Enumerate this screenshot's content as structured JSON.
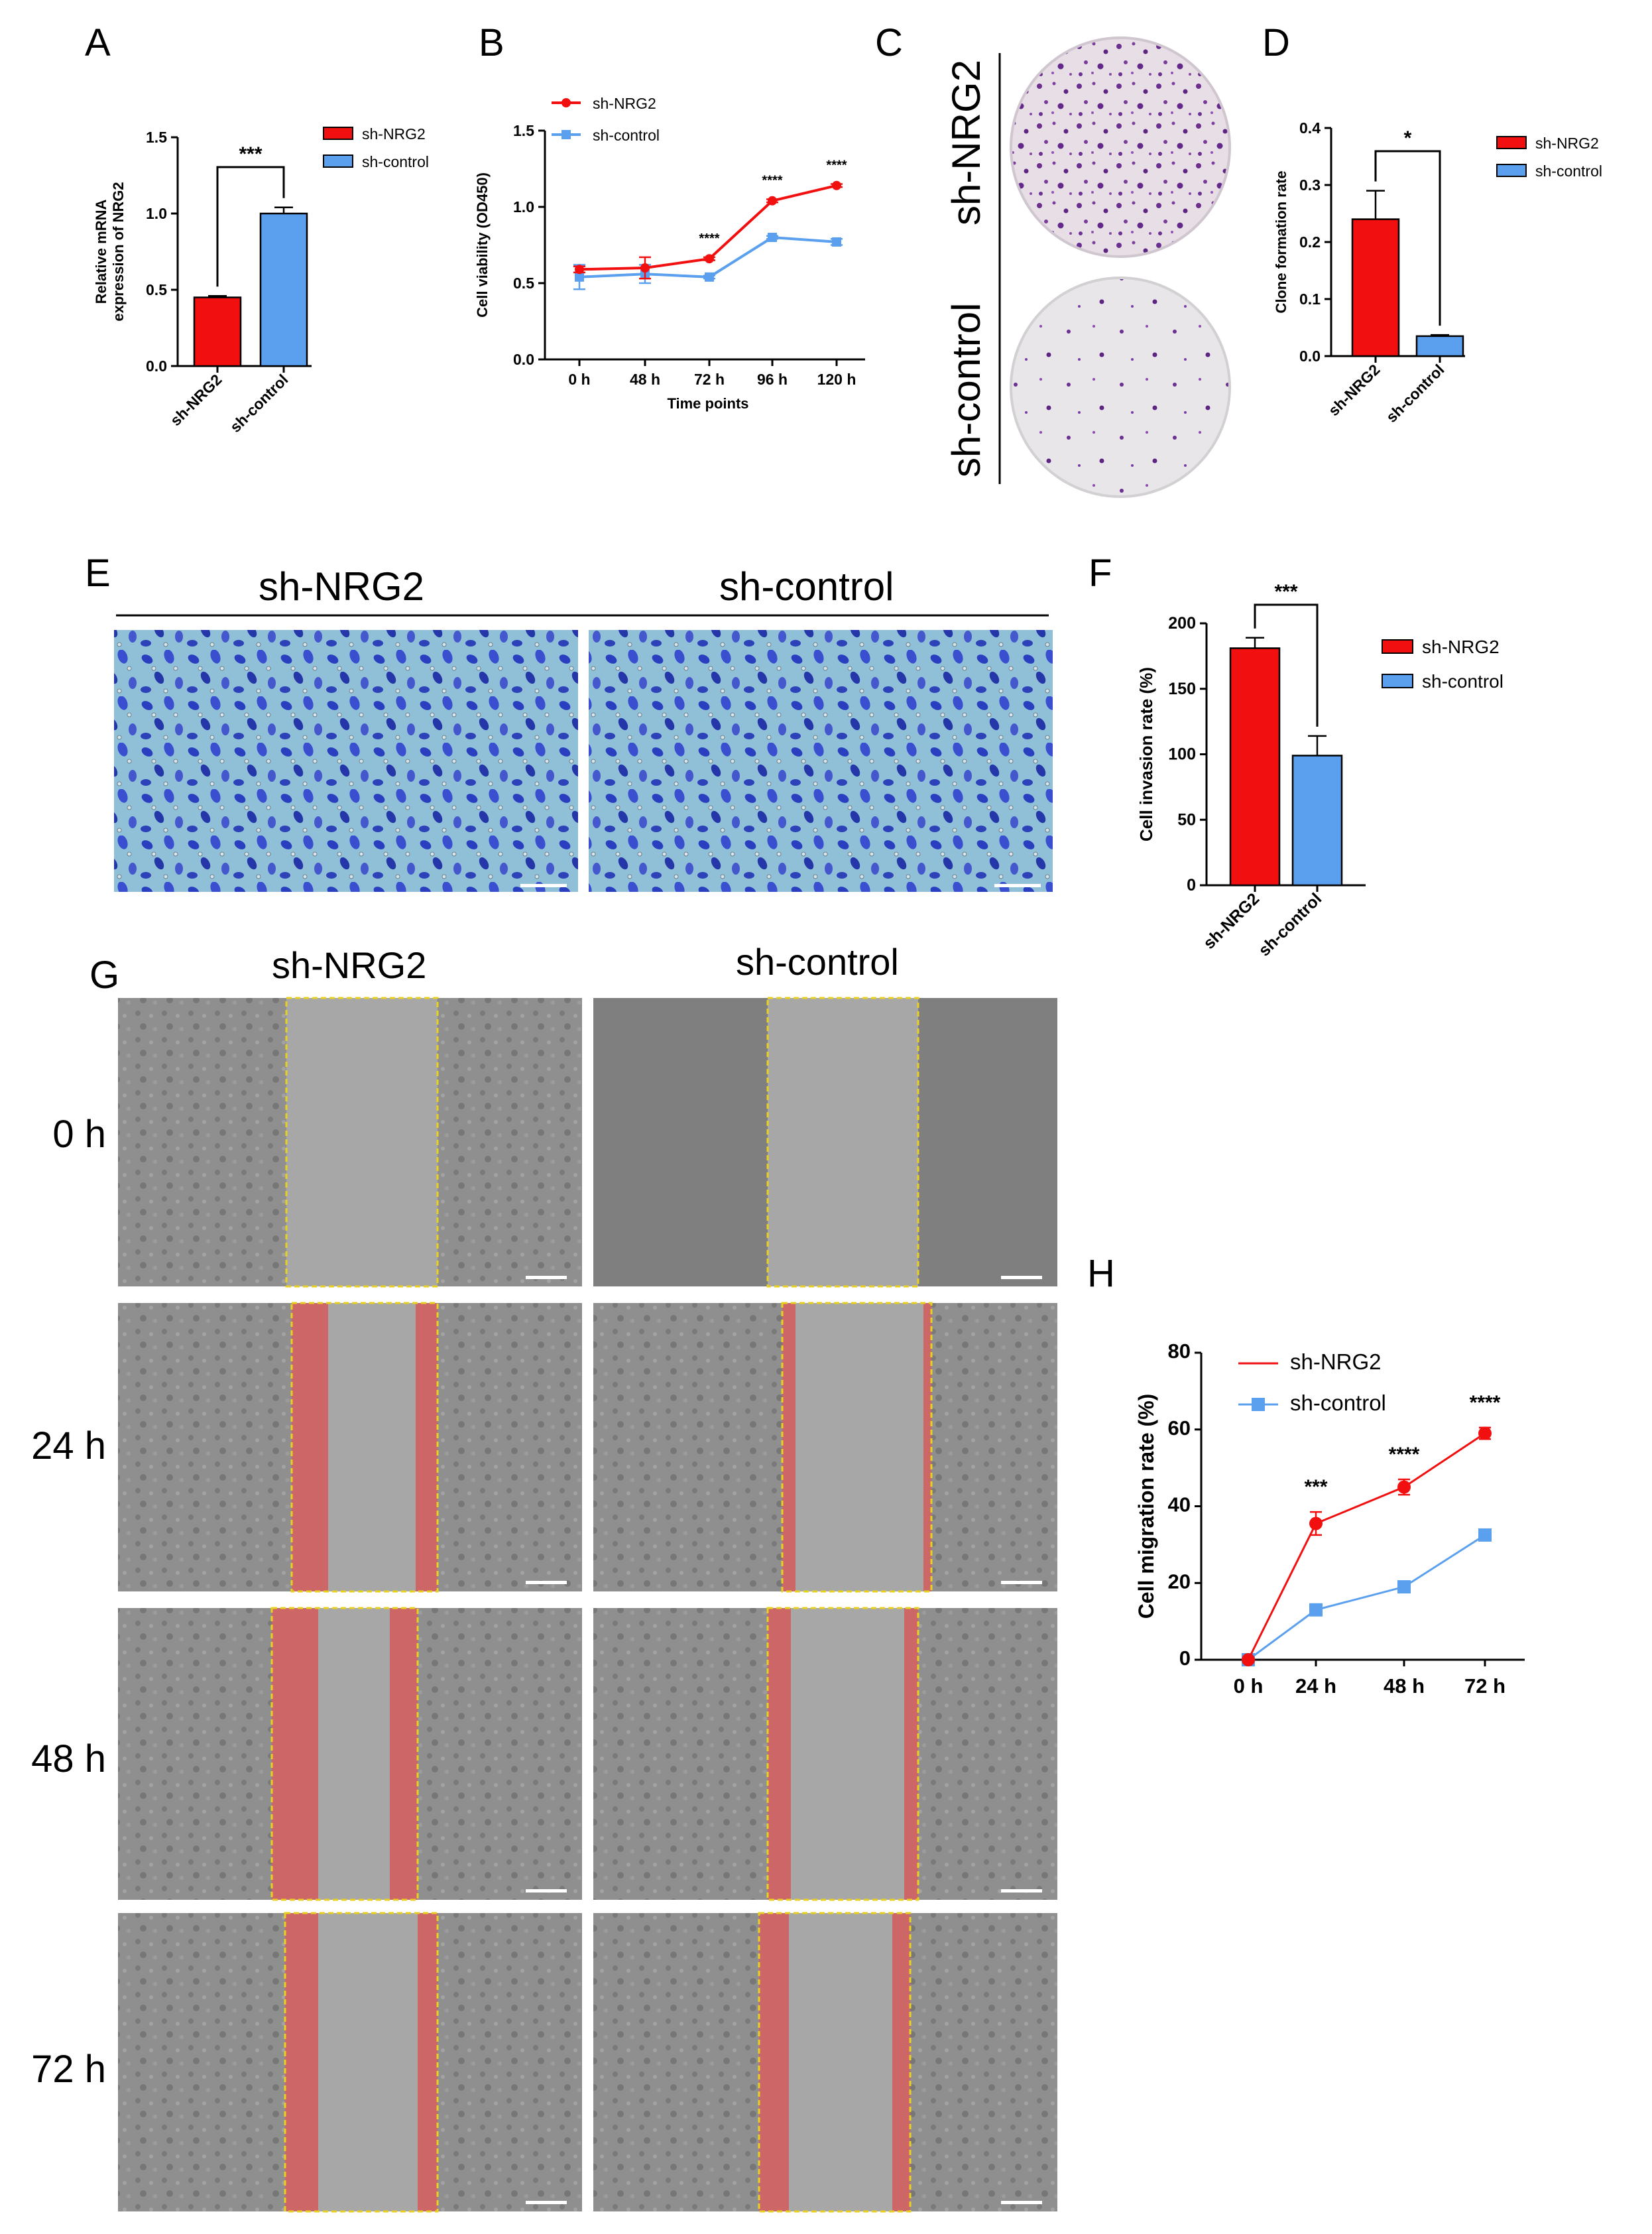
{
  "panels": {
    "A": "A",
    "B": "B",
    "C": "C",
    "D": "D",
    "E": "E",
    "F": "F",
    "G": "G",
    "H": "H"
  },
  "colors": {
    "sh_nrg2": "#f20f0f",
    "sh_control": "#5aa0ef"
  },
  "photos": {
    "C_rows": [
      "sh-NRG2",
      "sh-control"
    ],
    "E_cols": [
      "sh-NRG2",
      "sh-control"
    ],
    "G_cols": [
      "sh-NRG2",
      "sh-control"
    ],
    "G_rows": [
      "0 h",
      "24 h",
      "48 h",
      "72 h"
    ]
  },
  "chart_data": [
    {
      "id": "A",
      "type": "bar",
      "categories": [
        "sh-NRG2",
        "sh-control"
      ],
      "values": [
        0.45,
        1.0
      ],
      "errors": [
        0.01,
        0.04
      ],
      "ylabel_lines": [
        "Relative mRNA",
        "expression of NRG2"
      ],
      "ylim": [
        0,
        1.5
      ],
      "yticks": [
        "0.0",
        "0.5",
        "1.0",
        "1.5"
      ],
      "legend": [
        "sh-NRG2",
        "sh-control"
      ],
      "legend_position": "right",
      "significance": "***"
    },
    {
      "id": "B",
      "type": "line",
      "x": [
        "0 h",
        "48 h",
        "72 h",
        "96 h",
        "120 h"
      ],
      "series": [
        {
          "name": "sh-NRG2",
          "values": [
            0.59,
            0.6,
            0.66,
            1.04,
            1.14
          ],
          "errors": [
            0.02,
            0.07,
            0.01,
            0.01,
            0.01
          ]
        },
        {
          "name": "sh-control",
          "values": [
            0.54,
            0.56,
            0.54,
            0.8,
            0.77
          ],
          "errors": [
            0.08,
            0.06,
            0.01,
            0.01,
            0.02
          ]
        }
      ],
      "annotations": [
        "",
        "",
        "****",
        "****",
        "****"
      ],
      "xlabel": "Time points",
      "ylabel": "Cell viability (OD450)",
      "ylim": [
        0,
        1.5
      ],
      "yticks": [
        "0.0",
        "0.5",
        "1.0",
        "1.5"
      ],
      "legend_position": "top-left"
    },
    {
      "id": "D",
      "type": "bar",
      "categories": [
        "sh-NRG2",
        "sh-control"
      ],
      "values": [
        0.24,
        0.035
      ],
      "errors": [
        0.05,
        0.002
      ],
      "ylabel": "Clone formation rate",
      "ylim": [
        0,
        0.4
      ],
      "yticks": [
        "0.0",
        "0.1",
        "0.2",
        "0.3",
        "0.4"
      ],
      "legend": [
        "sh-NRG2",
        "sh-control"
      ],
      "legend_position": "right",
      "significance": "*"
    },
    {
      "id": "F",
      "type": "bar",
      "categories": [
        "sh-NRG2",
        "sh-control"
      ],
      "values": [
        181,
        99
      ],
      "errors": [
        8,
        15
      ],
      "ylabel": "Cell invasion rate (%)",
      "ylim": [
        0,
        200
      ],
      "yticks": [
        "0",
        "50",
        "100",
        "150",
        "200"
      ],
      "legend": [
        "sh-NRG2",
        "sh-control"
      ],
      "legend_position": "right",
      "significance": "***"
    },
    {
      "id": "H",
      "type": "line",
      "x": [
        "0 h",
        "24 h",
        "48 h",
        "72 h"
      ],
      "series": [
        {
          "name": "sh-NRG2",
          "values": [
            0,
            35.5,
            45,
            59
          ],
          "errors": [
            0,
            3,
            2,
            1.5
          ]
        },
        {
          "name": "sh-control",
          "values": [
            0,
            13,
            19,
            32.5
          ],
          "errors": [
            0,
            0.8,
            0.8,
            0.8
          ]
        }
      ],
      "annotations": [
        "",
        "***",
        "****",
        "****"
      ],
      "ylabel": "Cell migration rate (%)",
      "ylim": [
        0,
        80
      ],
      "yticks": [
        "0",
        "20",
        "40",
        "60",
        "80"
      ],
      "legend_position": "top-left"
    }
  ]
}
